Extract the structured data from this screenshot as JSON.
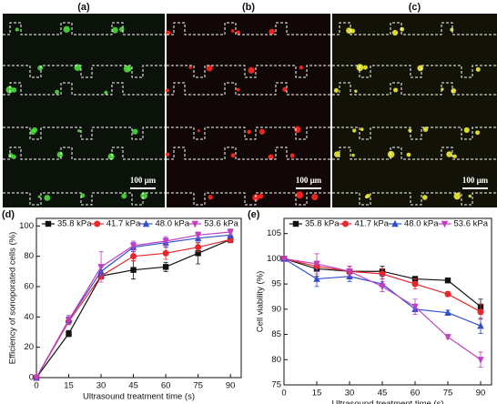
{
  "images": {
    "labels": [
      "(a)",
      "(b)",
      "(c)"
    ],
    "scale_bar": "100 μm"
  },
  "chart_data": [
    {
      "type": "line",
      "label": "(d)",
      "x_label": "Ultrasound treatment time (s)",
      "y_label": "Efficiency of  sonoporated cells (%)",
      "x": [
        0,
        15,
        30,
        45,
        60,
        75,
        90
      ],
      "xlim": [
        0,
        95
      ],
      "xticks": [
        0,
        15,
        30,
        45,
        60,
        75,
        90
      ],
      "ylim": [
        0,
        105
      ],
      "yticks": [
        0,
        20,
        40,
        60,
        80,
        100
      ],
      "legend": "top",
      "series": [
        {
          "name": "35.8 kPa",
          "color": "#111111",
          "marker": "square",
          "values": [
            0,
            29,
            67,
            71,
            73,
            82,
            91
          ],
          "errors": [
            0,
            2,
            2,
            6,
            3,
            7,
            2
          ]
        },
        {
          "name": "41.7 kPa",
          "color": "#e8262b",
          "marker": "circle",
          "values": [
            0,
            37,
            67,
            80,
            82,
            86,
            91
          ],
          "errors": [
            0,
            2,
            2,
            3,
            4,
            3,
            2
          ]
        },
        {
          "name": "48.0 kPa",
          "color": "#2f4fd0",
          "marker": "triangle-up",
          "values": [
            0,
            38,
            70,
            86,
            89,
            92,
            94
          ],
          "errors": [
            0,
            2,
            3,
            3,
            3,
            2,
            2
          ]
        },
        {
          "name": "53.6 kPa",
          "color": "#c040c0",
          "marker": "triangle-down",
          "values": [
            0,
            38,
            73,
            87,
            90,
            94,
            96
          ],
          "errors": [
            0,
            3,
            10,
            3,
            3,
            2,
            2
          ]
        }
      ]
    },
    {
      "type": "line",
      "label": "(e)",
      "x_label": "Ultrasound treatment time (s)",
      "y_label": "Cell viability (%)",
      "x": [
        0,
        15,
        30,
        45,
        60,
        75,
        90
      ],
      "xlim": [
        0,
        95
      ],
      "xticks": [
        0,
        15,
        30,
        45,
        60,
        75,
        90
      ],
      "ylim": [
        75,
        108
      ],
      "yticks": [
        75,
        80,
        85,
        90,
        95,
        100,
        105
      ],
      "legend": "top",
      "series": [
        {
          "name": "35.8 kPa",
          "color": "#111111",
          "marker": "square",
          "values": [
            100,
            98,
            97.5,
            97.5,
            96,
            95.7,
            90.5
          ],
          "errors": [
            0,
            1.5,
            1,
            1,
            0.5,
            0.3,
            1.5
          ]
        },
        {
          "name": "41.7 kPa",
          "color": "#e8262b",
          "marker": "circle",
          "values": [
            100,
            98.5,
            97.5,
            97,
            95,
            93,
            89.5
          ],
          "errors": [
            0,
            1,
            1,
            1,
            1,
            0.5,
            1.5
          ]
        },
        {
          "name": "48.0 kPa",
          "color": "#2f4fd0",
          "marker": "triangle-up",
          "values": [
            100,
            96,
            96.5,
            95,
            90,
            89.3,
            86.7
          ],
          "errors": [
            0,
            1.5,
            1,
            1.5,
            1,
            0.5,
            1.5
          ]
        },
        {
          "name": "53.6 kPa",
          "color": "#c040c0",
          "marker": "triangle-down",
          "values": [
            100,
            99,
            97.5,
            94.5,
            90.5,
            84.5,
            80
          ],
          "errors": [
            0,
            2,
            1,
            1,
            1.5,
            0.3,
            1.5
          ]
        }
      ]
    }
  ]
}
